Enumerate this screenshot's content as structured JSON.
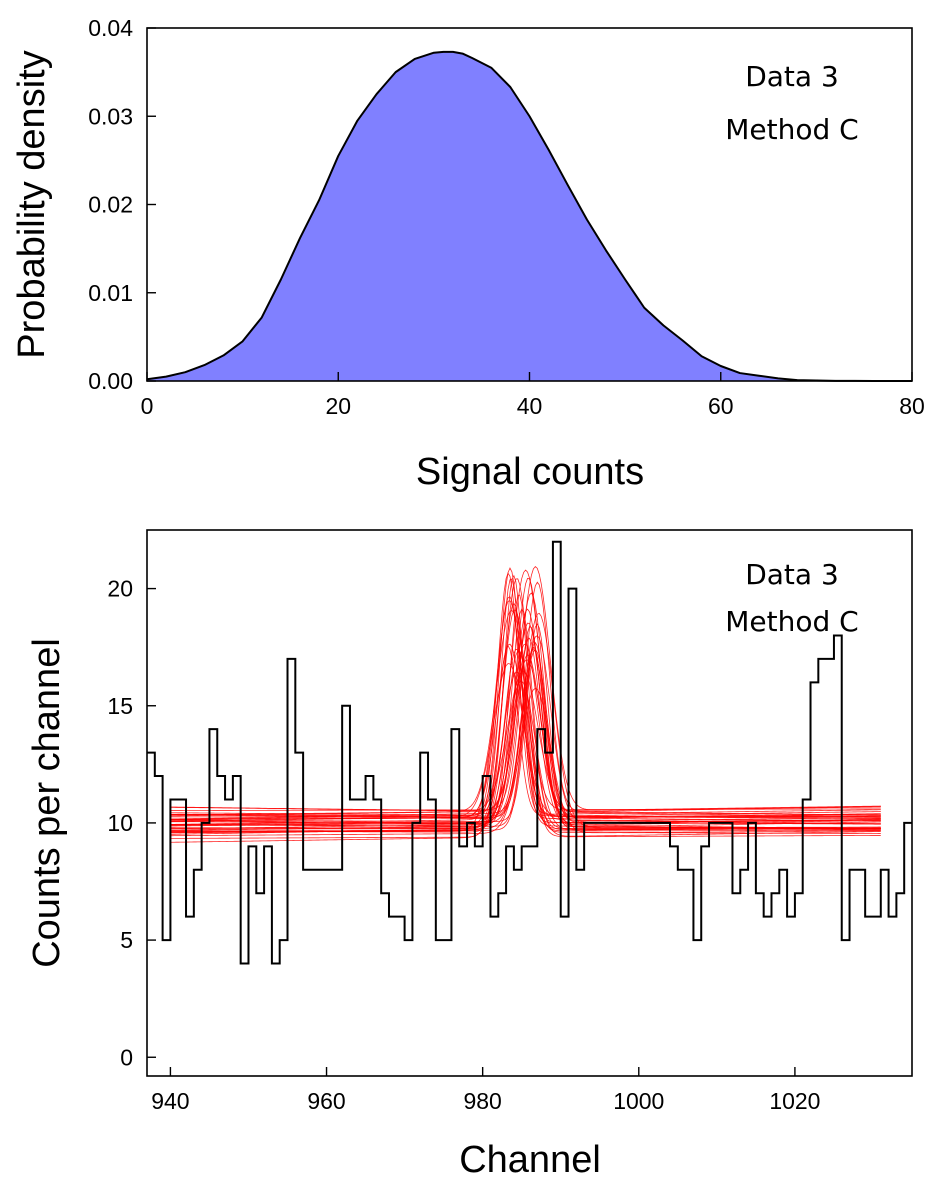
{
  "chart_data": [
    {
      "type": "area",
      "xlabel": "Signal counts",
      "ylabel": "Probability density",
      "xlim": [
        0,
        80
      ],
      "ylim": [
        0,
        0.04
      ],
      "xticks": [
        0,
        20,
        40,
        60,
        80
      ],
      "yticks": [
        0.0,
        0.01,
        0.02,
        0.03,
        0.04
      ],
      "xtick_labels": [
        "0",
        "20",
        "40",
        "60",
        "80"
      ],
      "ytick_labels": [
        "0.00",
        "0.01",
        "0.02",
        "0.03",
        "0.04"
      ],
      "annotation": [
        "Data 3",
        "Method C"
      ],
      "fill_color": "#8080ff",
      "grid": false,
      "x": [
        0,
        2,
        4,
        6,
        8,
        10,
        12,
        14,
        16,
        18,
        20,
        22,
        24,
        26,
        28,
        30,
        31,
        32,
        33,
        34,
        36,
        38,
        40,
        42,
        44,
        46,
        48,
        50,
        52,
        54,
        56,
        58,
        60,
        62,
        64,
        66,
        68,
        70,
        72,
        74,
        76,
        78,
        80
      ],
      "y": [
        0.0002,
        0.0005,
        0.001,
        0.0018,
        0.0029,
        0.0045,
        0.0072,
        0.0115,
        0.0162,
        0.0205,
        0.0255,
        0.0295,
        0.0325,
        0.035,
        0.0365,
        0.0372,
        0.0373,
        0.0373,
        0.0371,
        0.0366,
        0.0355,
        0.0333,
        0.03,
        0.0262,
        0.0222,
        0.0183,
        0.0148,
        0.0115,
        0.0083,
        0.0063,
        0.0046,
        0.0028,
        0.0017,
        0.0009,
        0.0006,
        0.0003,
        0.0001,
        5e-05,
        2e-05,
        1e-05,
        0,
        0,
        0
      ]
    },
    {
      "type": "line",
      "xlabel": "Channel",
      "ylabel": "Counts per channel",
      "xlim": [
        937,
        1035
      ],
      "ylim": [
        -0.8,
        22.5
      ],
      "xticks": [
        940,
        960,
        980,
        1000,
        1020
      ],
      "yticks": [
        0,
        5,
        10,
        15,
        20
      ],
      "xtick_labels": [
        "940",
        "960",
        "980",
        "1000",
        "1020"
      ],
      "ytick_labels": [
        "0",
        "5",
        "10",
        "15",
        "20"
      ],
      "annotation": [
        "Data 3",
        "Method C"
      ],
      "grid": false,
      "histogram": {
        "name": "",
        "color": "#000000",
        "channel_start": 937,
        "counts": [
          13,
          12,
          5,
          11,
          11,
          6,
          8,
          10,
          14,
          12,
          11,
          12,
          4,
          9,
          7,
          9,
          4,
          5,
          17,
          13,
          8,
          8,
          8,
          8,
          8,
          15,
          11,
          11,
          12,
          11,
          7,
          6,
          6,
          5,
          10,
          13,
          11,
          5,
          5,
          14,
          9,
          10,
          9,
          12,
          6,
          7,
          9,
          8,
          9,
          9,
          14,
          13,
          22,
          6,
          20,
          8,
          10,
          10,
          10,
          10,
          10,
          10,
          10,
          10,
          10,
          10,
          10,
          9,
          8,
          8,
          5,
          9,
          10,
          10,
          10,
          7,
          8,
          10,
          7,
          6,
          7,
          8,
          6,
          7,
          11,
          16,
          17,
          17,
          18,
          5,
          8,
          8,
          6,
          6,
          8,
          6,
          7,
          10
        ]
      },
      "model": {
        "color": "#ff0000",
        "x_range": [
          940,
          1031
        ],
        "n_curves": 40,
        "baseline_range": [
          9.4,
          10.6
        ],
        "peak_center_range": [
          983.2,
          987.2
        ],
        "peak_height_range": [
          6.0,
          11.0
        ],
        "peak_sigma_range": [
          1.2,
          2.0
        ]
      }
    }
  ]
}
